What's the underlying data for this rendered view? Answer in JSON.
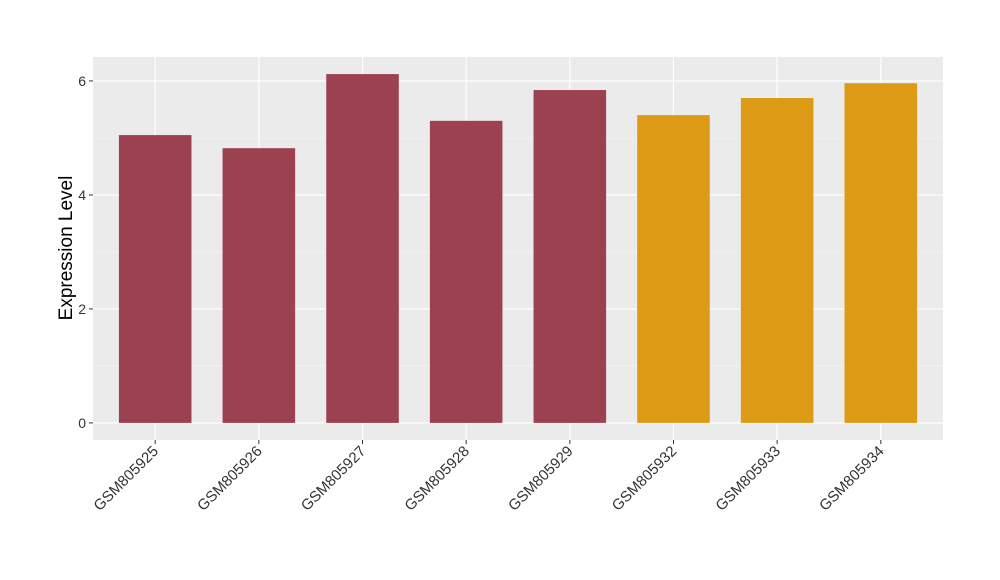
{
  "chart_data": {
    "type": "bar",
    "y_label": "Expression Level",
    "categories": [
      "GSM805925",
      "GSM805926",
      "GSM805927",
      "GSM805928",
      "GSM805929",
      "GSM805932",
      "GSM805933",
      "GSM805934"
    ],
    "values": [
      5.05,
      4.82,
      6.12,
      5.3,
      5.84,
      5.4,
      5.7,
      5.96
    ],
    "colors": [
      "#9b4150",
      "#9b4150",
      "#9b4150",
      "#9b4150",
      "#9b4150",
      "#dc9a15",
      "#dc9a15",
      "#dc9a15"
    ],
    "ylim": [
      -0.3,
      6.42
    ],
    "yticks": [
      0,
      2,
      4,
      6
    ],
    "grid": true
  }
}
